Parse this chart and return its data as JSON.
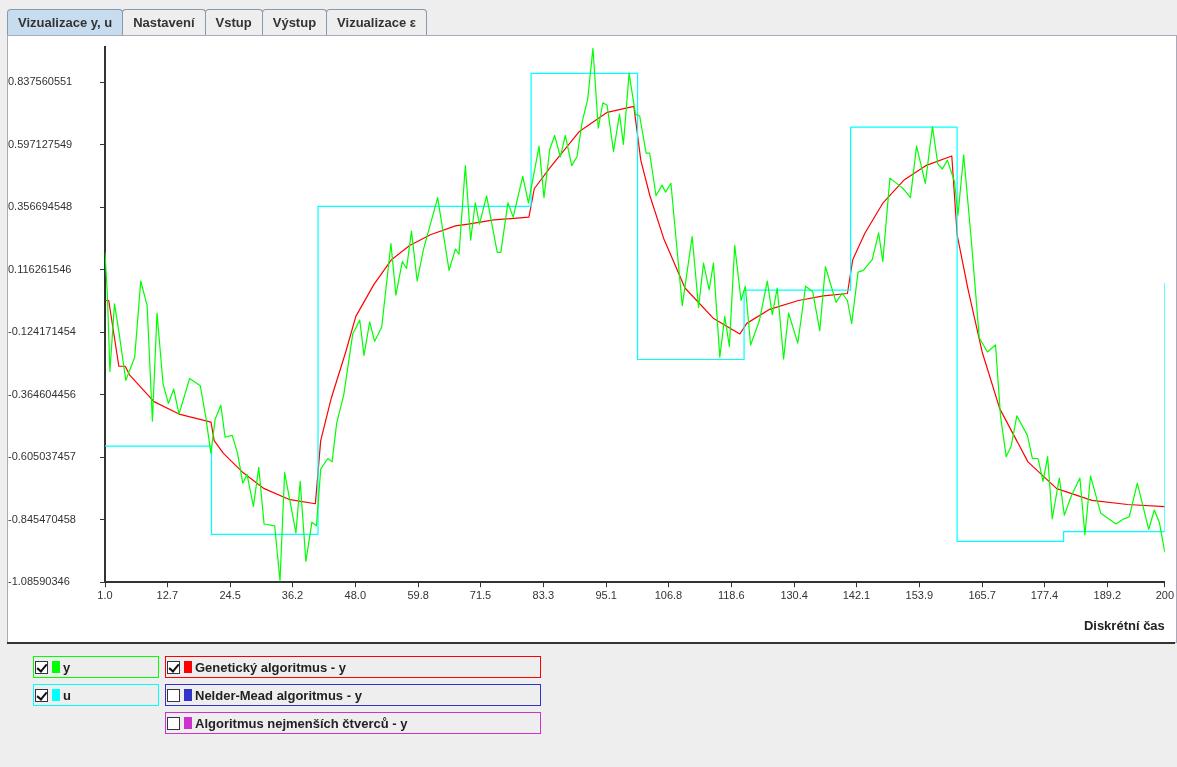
{
  "chart_data": {
    "type": "line",
    "xlabel": "Diskrétní čas",
    "annotations": [
      "Vizualizace y, u",
      "Nastavení",
      "Vstup",
      "Výstup",
      "Vizualizace ε"
    ],
    "xlim": [
      1,
      200
    ],
    "ylim": [
      -1.08590346,
      0.975
    ],
    "xticks": [
      {
        "value": 1,
        "label": "1.0"
      },
      12.7,
      24.5,
      36.2,
      {
        "value": 48,
        "label": "48.0"
      },
      59.8,
      71.5,
      83.3,
      95.1,
      106.8,
      118.6,
      130.4,
      142.1,
      153.9,
      165.7,
      177.4,
      189.2,
      {
        "value": 200,
        "label": "200"
      }
    ],
    "yticks": [
      0.837560551,
      0.597127549,
      0.356694548,
      0.116261546,
      -0.124171454,
      -0.364604456,
      -0.605037457,
      -0.845470458,
      -1.08590346
    ],
    "grid": false,
    "legend": "bottom",
    "marker": "none",
    "series": [
      {
        "name": "y",
        "color": "#00ff00",
        "x": [
          1,
          1.45,
          1.92,
          2.78,
          3.58,
          4.91,
          6.58,
          7.71,
          8.91,
          9.9,
          10.77,
          11.9,
          12.9,
          13.9,
          14.89,
          16.89,
          18.89,
          19.89,
          20.88,
          21.68,
          22.75,
          23.55,
          24.88,
          25.88,
          26.87,
          27.67,
          28.87,
          29.87,
          30.87,
          32.86,
          33.86,
          34.73,
          36.85,
          37.65,
          38.72,
          39.85,
          40.71,
          41.51,
          42.84,
          43.64,
          44.51,
          45.84,
          47.5,
          48.83,
          49.63,
          50.7,
          51.63,
          52.96,
          54.69,
          55.62,
          56.82,
          57.62,
          58.55,
          59.61,
          60.81,
          63.47,
          65.6,
          66.8,
          67.47,
          68.66,
          69.66,
          70.52,
          71.32,
          72.65,
          74.65,
          75.32,
          76.65,
          77.64,
          79.44,
          80.51,
          82.5,
          83.43,
          84.5,
          85.43,
          86.5,
          87.43,
          88.63,
          89.62,
          90.62,
          91.62,
          92.62,
          93.62,
          94.48,
          95.28,
          96.48,
          97.61,
          98.34,
          99.41,
          100.6,
          101.4,
          102.6,
          103.27,
          104.46,
          105.59,
          106.26,
          107.26,
          109.39,
          111.25,
          112.45,
          113.38,
          114.44,
          115.24,
          116.44,
          117.37,
          118.24,
          119.24,
          120.43,
          121.23,
          122.23,
          123.9,
          125.36,
          126.29,
          127.22,
          128.42,
          129.35,
          131.08,
          132.55,
          133.88,
          135.21,
          136.27,
          138.27,
          139.4,
          140.4,
          141.2,
          142.4,
          143.39,
          145.06,
          146.26,
          147.05,
          148.38,
          150.05,
          150.91,
          152.24,
          153.38,
          155.04,
          156.37,
          157.37,
          158.23,
          159.17,
          160.5,
          161.16,
          162.23,
          163.69,
          165.16,
          166.68,
          168.21,
          169.15,
          170.21,
          171.15,
          172.21,
          174.2,
          175.14,
          176.2,
          177.13,
          178,
          178.86,
          180.19,
          181.13,
          182.46,
          184.05,
          184.99,
          186.05,
          187.98,
          190.84,
          192.31,
          193.31,
          194.84,
          196.97,
          198.03,
          198.96,
          200
        ],
        "values": [
          0.183,
          0.019,
          -0.275,
          -0.015,
          -0.118,
          -0.309,
          -0.22,
          0.073,
          -0.022,
          -0.466,
          -0.05,
          -0.323,
          -0.398,
          -0.343,
          -0.439,
          -0.302,
          -0.33,
          -0.446,
          -0.589,
          -0.459,
          -0.405,
          -0.528,
          -0.521,
          -0.589,
          -0.705,
          -0.671,
          -0.794,
          -0.644,
          -0.862,
          -0.869,
          -1.081,
          -0.664,
          -0.896,
          -0.698,
          -1.006,
          -0.855,
          -0.869,
          -0.65,
          -0.61,
          -0.623,
          -0.473,
          -0.364,
          -0.132,
          -0.077,
          -0.213,
          -0.084,
          -0.159,
          -0.104,
          0.217,
          0.019,
          0.148,
          0.121,
          0.265,
          0.073,
          0.196,
          0.394,
          0.114,
          0.196,
          0.176,
          0.517,
          0.23,
          0.374,
          0.292,
          0.401,
          0.183,
          0.183,
          0.374,
          0.319,
          0.476,
          0.374,
          0.592,
          0.394,
          0.579,
          0.633,
          0.551,
          0.633,
          0.517,
          0.551,
          0.688,
          0.77,
          0.968,
          0.661,
          0.759,
          0.749,
          0.572,
          0.715,
          0.599,
          0.872,
          0.715,
          0.708,
          0.565,
          0.565,
          0.401,
          0.442,
          0.415,
          0.449,
          -0.022,
          0.244,
          -0.029,
          0.142,
          0.039,
          0.142,
          -0.22,
          -0.063,
          -0.179,
          0.21,
          -0.002,
          0.053,
          -0.173,
          -0.077,
          0.073,
          -0.056,
          0.046,
          -0.227,
          -0.05,
          -0.166,
          0.053,
          0.032,
          -0.118,
          0.128,
          -0.009,
          0.026,
          -0.002,
          -0.091,
          0.107,
          0.114,
          0.155,
          0.258,
          0.148,
          0.469,
          0.442,
          0.428,
          0.394,
          0.592,
          0.449,
          0.667,
          0.524,
          0.504,
          0.538,
          0.456,
          0.326,
          0.558,
          0.224,
          -0.145,
          -0.2,
          -0.173,
          -0.446,
          -0.603,
          -0.562,
          -0.446,
          -0.521,
          -0.61,
          -0.61,
          -0.698,
          -0.603,
          -0.842,
          -0.685,
          -0.828,
          -0.753,
          -0.685,
          -0.903,
          -0.678,
          -0.821,
          -0.862,
          -0.842,
          -0.835,
          -0.705,
          -0.883,
          -0.808,
          -0.855,
          -0.971
        ]
      },
      {
        "name": "u",
        "type": "step",
        "color": "#00ffff",
        "x": [
          1,
          21,
          41,
          81,
          101,
          121,
          141,
          161,
          181,
          200
        ],
        "values": [
          -0.562,
          -0.902,
          0.36,
          0.872,
          -0.229,
          0.038,
          0.665,
          -0.929,
          -0.891,
          0.065
        ]
      },
      {
        "name": "Genetický algoritmus - y",
        "color": "#ff0000",
        "x": [
          1,
          1.7,
          3.6,
          4.8,
          5.6,
          10.2,
          14.9,
          20.9,
          21.5,
          23.2,
          26.9,
          30.9,
          35.5,
          40.5,
          41.5,
          43.5,
          46.2,
          48.1,
          51.5,
          54.8,
          58.2,
          62.1,
          66.8,
          69.2,
          74,
          80.6,
          81.6,
          84.6,
          90,
          95.3,
          100.3,
          101.6,
          103.3,
          105.9,
          109.9,
          115.2,
          120.2,
          121.5,
          125.8,
          131.2,
          135.9,
          140.4,
          141.4,
          143.7,
          147.1,
          151.1,
          155.1,
          160,
          161,
          163,
          165.7,
          169,
          174.3,
          179.7,
          186.3,
          193,
          200
        ],
        "values": [
          -0.002,
          -0.002,
          -0.255,
          -0.255,
          -0.288,
          -0.391,
          -0.439,
          -0.47,
          -0.541,
          -0.589,
          -0.664,
          -0.726,
          -0.767,
          -0.784,
          -0.541,
          -0.377,
          -0.2,
          -0.063,
          0.06,
          0.155,
          0.21,
          0.251,
          0.285,
          0.292,
          0.308,
          0.319,
          0.428,
          0.51,
          0.647,
          0.722,
          0.745,
          0.538,
          0.402,
          0.237,
          0.046,
          -0.07,
          -0.131,
          -0.09,
          -0.036,
          -0.002,
          0.016,
          0.025,
          0.155,
          0.258,
          0.374,
          0.463,
          0.517,
          0.554,
          0.251,
          0.046,
          -0.2,
          -0.418,
          -0.623,
          -0.726,
          -0.771,
          -0.787,
          -0.795
        ]
      },
      {
        "name": "Nelder-Mead algoritmus - y",
        "color": "#3333cc"
      },
      {
        "name": "Algoritmus nejmenších čtverců - y",
        "color": "#cc33cc"
      }
    ]
  }
}
